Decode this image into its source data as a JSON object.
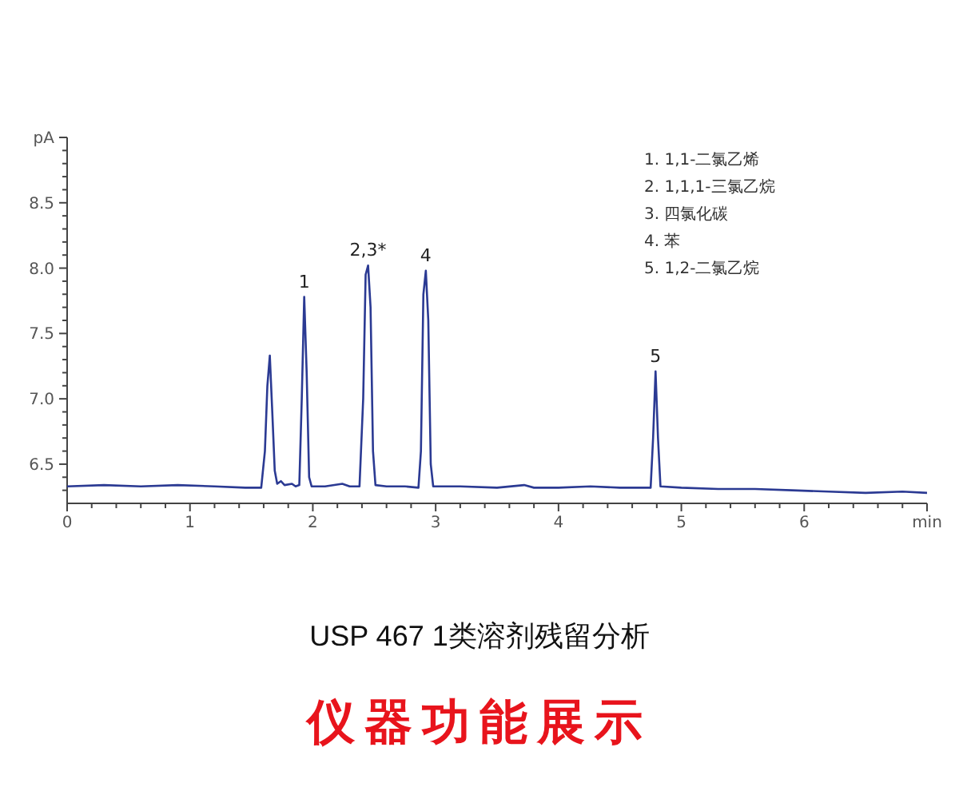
{
  "chart_data": {
    "type": "line",
    "title": "USP 467 1类溶剂残留分析",
    "subtitle": "仪器功能展示",
    "annotations": [
      "1.  1,1-二氯乙烯",
      "2.  1,1,1-三氯乙烷",
      "3.  四氯化碳",
      "4.  苯",
      "5.  1,2-二氯乙烷",
      {
        "text": "1",
        "x": 1.93,
        "y": 7.78
      },
      {
        "text": "2,3*",
        "x": 2.45,
        "y": 8.02
      },
      {
        "text": "4",
        "x": 2.92,
        "y": 7.98
      },
      {
        "text": "5",
        "x": 4.79,
        "y": 7.21
      }
    ],
    "x": [
      0,
      0.3,
      0.6,
      0.9,
      1.2,
      1.45,
      1.58,
      1.61,
      1.63,
      1.65,
      1.67,
      1.69,
      1.71,
      1.74,
      1.77,
      1.83,
      1.86,
      1.89,
      1.91,
      1.93,
      1.95,
      1.97,
      1.99,
      2.1,
      2.24,
      2.3,
      2.38,
      2.41,
      2.43,
      2.45,
      2.47,
      2.49,
      2.51,
      2.6,
      2.75,
      2.86,
      2.88,
      2.9,
      2.92,
      2.94,
      2.96,
      2.98,
      3.2,
      3.5,
      3.72,
      3.8,
      4.0,
      4.26,
      4.5,
      4.75,
      4.77,
      4.79,
      4.81,
      4.83,
      5.0,
      5.3,
      5.6,
      5.9,
      6.2,
      6.5,
      6.8,
      7.0
    ],
    "series": [
      {
        "color": "#2b3a93",
        "values": [
          6.33,
          6.34,
          6.33,
          6.34,
          6.33,
          6.32,
          6.32,
          6.6,
          7.1,
          7.33,
          6.9,
          6.45,
          6.35,
          6.37,
          6.34,
          6.35,
          6.33,
          6.34,
          7.0,
          7.78,
          7.2,
          6.4,
          6.33,
          6.33,
          6.35,
          6.33,
          6.33,
          7.0,
          7.95,
          8.02,
          7.7,
          6.6,
          6.34,
          6.33,
          6.33,
          6.32,
          6.6,
          7.8,
          7.98,
          7.6,
          6.5,
          6.33,
          6.33,
          6.32,
          6.34,
          6.32,
          6.32,
          6.33,
          6.32,
          6.32,
          6.7,
          7.21,
          6.7,
          6.33,
          6.32,
          6.31,
          6.31,
          6.3,
          6.29,
          6.28,
          6.29,
          6.28
        ]
      }
    ],
    "xlim": [
      0,
      7
    ],
    "ylim": [
      6.2,
      9.0
    ],
    "xticks": [
      0,
      {
        "value": 0.2,
        "label": null
      },
      {
        "value": 0.4,
        "label": null
      },
      {
        "value": 0.6,
        "label": null
      },
      {
        "value": 0.8,
        "label": null
      },
      1,
      {
        "value": 1.2,
        "label": null
      },
      {
        "value": 1.4,
        "label": null
      },
      {
        "value": 1.6,
        "label": null
      },
      {
        "value": 1.8,
        "label": null
      },
      2,
      {
        "value": 2.2,
        "label": null
      },
      {
        "value": 2.4,
        "label": null
      },
      {
        "value": 2.6,
        "label": null
      },
      {
        "value": 2.8,
        "label": null
      },
      3,
      {
        "value": 3.2,
        "label": null
      },
      {
        "value": 3.4,
        "label": null
      },
      {
        "value": 3.6,
        "label": null
      },
      {
        "value": 3.8,
        "label": null
      },
      4,
      {
        "value": 4.2,
        "label": null
      },
      {
        "value": 4.4,
        "label": null
      },
      {
        "value": 4.6,
        "label": null
      },
      {
        "value": 4.8,
        "label": null
      },
      5,
      {
        "value": 5.2,
        "label": null
      },
      {
        "value": 5.4,
        "label": null
      },
      {
        "value": 5.6,
        "label": null
      },
      {
        "value": 5.8,
        "label": null
      },
      6,
      {
        "value": 6.2,
        "label": null
      },
      {
        "value": 6.4,
        "label": null
      },
      {
        "value": 6.6,
        "label": null
      },
      {
        "value": 6.8,
        "label": null
      },
      {
        "value": 7,
        "label": "min"
      }
    ],
    "yticks": [
      {
        "value": 6.3,
        "label": null
      },
      {
        "value": 6.4,
        "label": null
      },
      6.5,
      {
        "value": 6.6,
        "label": null
      },
      {
        "value": 6.7,
        "label": null
      },
      {
        "value": 6.8,
        "label": null
      },
      {
        "value": 6.9,
        "label": null
      },
      {
        "value": 7.0,
        "label": "7.0"
      },
      {
        "value": 7.1,
        "label": null
      },
      {
        "value": 7.2,
        "label": null
      },
      {
        "value": 7.3,
        "label": null
      },
      {
        "value": 7.4,
        "label": null
      },
      7.5,
      {
        "value": 7.6,
        "label": null
      },
      {
        "value": 7.7,
        "label": null
      },
      {
        "value": 7.8,
        "label": null
      },
      {
        "value": 7.9,
        "label": null
      },
      {
        "value": 8.0,
        "label": "8.0"
      },
      {
        "value": 8.1,
        "label": null
      },
      {
        "value": 8.2,
        "label": null
      },
      {
        "value": 8.3,
        "label": null
      },
      {
        "value": 8.4,
        "label": null
      },
      8.5,
      {
        "value": 8.6,
        "label": null
      },
      {
        "value": 8.7,
        "label": null
      },
      {
        "value": 8.8,
        "label": null
      },
      {
        "value": 8.9,
        "label": null
      },
      {
        "value": 9.0,
        "label": "pA"
      }
    ],
    "grid": false
  }
}
